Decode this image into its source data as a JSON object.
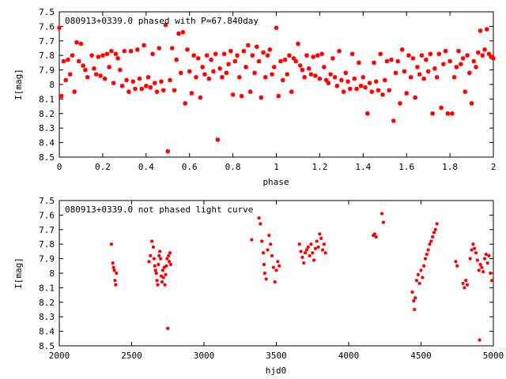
{
  "chart_data": [
    {
      "type": "scatter",
      "title": "080913+0339.0 phased with P=67.840day",
      "xlabel": "phase",
      "ylabel": "I[mag]",
      "xlim": [
        0,
        2
      ],
      "ylim": [
        8.5,
        7.5
      ],
      "y_inverted": true,
      "xticks": [
        "0",
        "0.2",
        "0.4",
        "0.6",
        "0.8",
        "1",
        "1.2",
        "1.4",
        "1.6",
        "1.8",
        "2"
      ],
      "yticks": [
        "7.5",
        "7.6",
        "7.7",
        "7.8",
        "7.9",
        "8",
        "8.1",
        "8.2",
        "8.3",
        "8.4",
        "8.5"
      ],
      "grid": false,
      "marker_color": "#ff0000",
      "points": [
        [
          0.0,
          7.61
        ],
        [
          0.01,
          8.08
        ],
        [
          0.02,
          7.84
        ],
        [
          0.03,
          7.97
        ],
        [
          0.04,
          7.83
        ],
        [
          0.05,
          7.93
        ],
        [
          0.06,
          7.8
        ],
        [
          0.07,
          8.05
        ],
        [
          0.08,
          7.71
        ],
        [
          0.09,
          7.84
        ],
        [
          0.1,
          7.72
        ],
        [
          0.11,
          7.87
        ],
        [
          0.12,
          7.9
        ],
        [
          0.13,
          7.95
        ],
        [
          0.15,
          7.8
        ],
        [
          0.16,
          7.89
        ],
        [
          0.17,
          7.93
        ],
        [
          0.18,
          7.81
        ],
        [
          0.19,
          7.94
        ],
        [
          0.2,
          7.8
        ],
        [
          0.21,
          7.96
        ],
        [
          0.22,
          7.79
        ],
        [
          0.23,
          7.88
        ],
        [
          0.24,
          7.77
        ],
        [
          0.25,
          7.99
        ],
        [
          0.26,
          7.79
        ],
        [
          0.27,
          7.82
        ],
        [
          0.28,
          7.9
        ],
        [
          0.29,
          8.01
        ],
        [
          0.3,
          7.77
        ],
        [
          0.31,
          7.97
        ],
        [
          0.32,
          8.05
        ],
        [
          0.33,
          7.77
        ],
        [
          0.34,
          7.98
        ],
        [
          0.35,
          8.03
        ],
        [
          0.36,
          7.76
        ],
        [
          0.37,
          7.96
        ],
        [
          0.38,
          8.03
        ],
        [
          0.39,
          7.73
        ],
        [
          0.4,
          8.01
        ],
        [
          0.41,
          7.95
        ],
        [
          0.42,
          8.02
        ],
        [
          0.43,
          7.79
        ],
        [
          0.44,
          7.99
        ],
        [
          0.45,
          8.05
        ],
        [
          0.46,
          7.75
        ],
        [
          0.47,
          7.98
        ],
        [
          0.48,
          8.04
        ],
        [
          0.49,
          7.59
        ],
        [
          0.5,
          8.46
        ],
        [
          0.51,
          7.97
        ],
        [
          0.52,
          7.75
        ],
        [
          0.53,
          8.04
        ],
        [
          0.54,
          7.83
        ],
        [
          0.55,
          7.65
        ],
        [
          0.56,
          7.92
        ],
        [
          0.57,
          7.64
        ],
        [
          0.58,
          8.13
        ],
        [
          0.59,
          7.76
        ],
        [
          0.6,
          7.91
        ],
        [
          0.61,
          8.06
        ],
        [
          0.62,
          7.8
        ],
        [
          0.63,
          7.95
        ],
        [
          0.64,
          7.82
        ],
        [
          0.65,
          8.09
        ],
        [
          0.66,
          7.88
        ],
        [
          0.67,
          7.93
        ],
        [
          0.68,
          7.8
        ],
        [
          0.69,
          7.96
        ],
        [
          0.7,
          7.83
        ],
        [
          0.71,
          7.91
        ],
        [
          0.72,
          7.79
        ],
        [
          0.73,
          8.38
        ],
        [
          0.74,
          7.89
        ],
        [
          0.75,
          7.95
        ],
        [
          0.76,
          7.79
        ],
        [
          0.77,
          7.92
        ],
        [
          0.78,
          7.86
        ],
        [
          0.79,
          7.77
        ],
        [
          0.8,
          8.07
        ],
        [
          0.81,
          7.84
        ],
        [
          0.82,
          7.8
        ],
        [
          0.83,
          7.95
        ],
        [
          0.84,
          8.08
        ],
        [
          0.85,
          7.77
        ],
        [
          0.86,
          7.88
        ],
        [
          0.87,
          7.73
        ],
        [
          0.88,
          8.05
        ],
        [
          0.89,
          7.8
        ],
        [
          0.9,
          7.92
        ],
        [
          0.91,
          7.74
        ],
        [
          0.92,
          7.84
        ],
        [
          0.93,
          8.09
        ],
        [
          0.94,
          7.78
        ],
        [
          0.95,
          7.95
        ],
        [
          0.96,
          7.8
        ],
        [
          0.97,
          7.76
        ],
        [
          0.98,
          7.93
        ],
        [
          0.99,
          7.88
        ],
        [
          1.0,
          7.61
        ],
        [
          1.01,
          8.08
        ],
        [
          1.02,
          7.84
        ],
        [
          1.03,
          7.97
        ],
        [
          1.04,
          7.83
        ],
        [
          1.05,
          7.93
        ],
        [
          1.06,
          7.8
        ],
        [
          1.07,
          8.05
        ],
        [
          1.08,
          7.82
        ],
        [
          1.09,
          7.84
        ],
        [
          1.1,
          7.72
        ],
        [
          1.11,
          7.87
        ],
        [
          1.12,
          7.9
        ],
        [
          1.13,
          7.95
        ],
        [
          1.14,
          7.8
        ],
        [
          1.15,
          7.89
        ],
        [
          1.16,
          7.93
        ],
        [
          1.17,
          7.81
        ],
        [
          1.18,
          7.94
        ],
        [
          1.19,
          7.8
        ],
        [
          1.2,
          7.96
        ],
        [
          1.21,
          7.79
        ],
        [
          1.22,
          7.88
        ],
        [
          1.23,
          7.97
        ],
        [
          1.24,
          7.99
        ],
        [
          1.25,
          7.93
        ],
        [
          1.26,
          7.82
        ],
        [
          1.27,
          7.95
        ],
        [
          1.28,
          8.01
        ],
        [
          1.29,
          7.77
        ],
        [
          1.3,
          7.97
        ],
        [
          1.31,
          8.05
        ],
        [
          1.32,
          7.92
        ],
        [
          1.33,
          7.98
        ],
        [
          1.34,
          8.03
        ],
        [
          1.35,
          7.79
        ],
        [
          1.36,
          7.96
        ],
        [
          1.37,
          8.03
        ],
        [
          1.38,
          7.85
        ],
        [
          1.39,
          8.01
        ],
        [
          1.4,
          7.95
        ],
        [
          1.41,
          8.02
        ],
        [
          1.42,
          8.2
        ],
        [
          1.43,
          7.99
        ],
        [
          1.44,
          8.05
        ],
        [
          1.45,
          7.85
        ],
        [
          1.46,
          7.98
        ],
        [
          1.47,
          8.04
        ],
        [
          1.48,
          7.79
        ],
        [
          1.49,
          8.07
        ],
        [
          1.5,
          7.97
        ],
        [
          1.51,
          7.84
        ],
        [
          1.52,
          8.04
        ],
        [
          1.53,
          7.83
        ],
        [
          1.54,
          8.25
        ],
        [
          1.55,
          7.92
        ],
        [
          1.56,
          7.84
        ],
        [
          1.57,
          8.13
        ],
        [
          1.58,
          7.76
        ],
        [
          1.59,
          7.91
        ],
        [
          1.6,
          8.06
        ],
        [
          1.61,
          7.8
        ],
        [
          1.62,
          7.95
        ],
        [
          1.63,
          7.82
        ],
        [
          1.64,
          8.09
        ],
        [
          1.65,
          7.88
        ],
        [
          1.66,
          7.93
        ],
        [
          1.67,
          7.8
        ],
        [
          1.68,
          7.96
        ],
        [
          1.69,
          7.83
        ],
        [
          1.7,
          7.91
        ],
        [
          1.71,
          7.79
        ],
        [
          1.72,
          8.2
        ],
        [
          1.73,
          7.89
        ],
        [
          1.74,
          7.95
        ],
        [
          1.75,
          7.79
        ],
        [
          1.76,
          8.16
        ],
        [
          1.77,
          7.86
        ],
        [
          1.78,
          7.77
        ],
        [
          1.79,
          8.2
        ],
        [
          1.8,
          7.84
        ],
        [
          1.81,
          8.2
        ],
        [
          1.82,
          7.95
        ],
        [
          1.83,
          7.88
        ],
        [
          1.84,
          7.77
        ],
        [
          1.85,
          7.86
        ],
        [
          1.86,
          7.82
        ],
        [
          1.87,
          8.05
        ],
        [
          1.88,
          7.8
        ],
        [
          1.89,
          7.92
        ],
        [
          1.9,
          8.13
        ],
        [
          1.91,
          7.84
        ],
        [
          1.92,
          7.88
        ],
        [
          1.93,
          7.78
        ],
        [
          1.94,
          7.63
        ],
        [
          1.95,
          7.8
        ],
        [
          1.96,
          7.76
        ],
        [
          1.97,
          7.62
        ],
        [
          1.98,
          7.79
        ],
        [
          1.99,
          7.81
        ],
        [
          2.0,
          7.82
        ]
      ]
    },
    {
      "type": "scatter",
      "title": "080913+0339.0 not phased light curve",
      "xlabel": "hjd0",
      "ylabel": "I[mag]",
      "xlim": [
        2000,
        5000
      ],
      "ylim": [
        8.5,
        7.5
      ],
      "y_inverted": true,
      "xticks": [
        "2000",
        "2500",
        "3000",
        "3500",
        "4000",
        "4500",
        "5000"
      ],
      "yticks": [
        "7.5",
        "7.6",
        "7.7",
        "7.8",
        "7.9",
        "8",
        "8.1",
        "8.2",
        "8.3",
        "8.4",
        "8.5"
      ],
      "grid": false,
      "marker_color": "#ff0000",
      "points": [
        [
          2360,
          7.8
        ],
        [
          2370,
          7.93
        ],
        [
          2375,
          7.96
        ],
        [
          2380,
          7.98
        ],
        [
          2385,
          8.05
        ],
        [
          2390,
          8.08
        ],
        [
          2395,
          8.0
        ],
        [
          2620,
          7.92
        ],
        [
          2630,
          7.88
        ],
        [
          2640,
          7.78
        ],
        [
          2650,
          7.82
        ],
        [
          2655,
          7.9
        ],
        [
          2660,
          7.95
        ],
        [
          2665,
          7.98
        ],
        [
          2670,
          8.0
        ],
        [
          2675,
          8.05
        ],
        [
          2680,
          8.08
        ],
        [
          2685,
          7.94
        ],
        [
          2690,
          7.88
        ],
        [
          2695,
          7.85
        ],
        [
          2700,
          7.9
        ],
        [
          2705,
          8.02
        ],
        [
          2710,
          8.06
        ],
        [
          2715,
          7.98
        ],
        [
          2720,
          8.03
        ],
        [
          2725,
          7.96
        ],
        [
          2730,
          8.08
        ],
        [
          2735,
          8.01
        ],
        [
          2740,
          7.95
        ],
        [
          2745,
          7.9
        ],
        [
          2750,
          8.38
        ],
        [
          2755,
          7.88
        ],
        [
          2760,
          7.92
        ],
        [
          2765,
          7.86
        ],
        [
          2770,
          7.94
        ],
        [
          3330,
          7.77
        ],
        [
          3380,
          7.62
        ],
        [
          3390,
          7.66
        ],
        [
          3400,
          7.78
        ],
        [
          3410,
          7.86
        ],
        [
          3415,
          7.94
        ],
        [
          3420,
          8.0
        ],
        [
          3430,
          8.04
        ],
        [
          3440,
          7.84
        ],
        [
          3450,
          7.74
        ],
        [
          3460,
          7.8
        ],
        [
          3470,
          7.88
        ],
        [
          3480,
          7.96
        ],
        [
          3490,
          8.06
        ],
        [
          3500,
          7.98
        ],
        [
          3510,
          7.92
        ],
        [
          3520,
          7.95
        ],
        [
          3660,
          7.8
        ],
        [
          3670,
          7.85
        ],
        [
          3680,
          7.89
        ],
        [
          3690,
          7.93
        ],
        [
          3700,
          7.86
        ],
        [
          3710,
          7.84
        ],
        [
          3720,
          7.82
        ],
        [
          3730,
          7.88
        ],
        [
          3740,
          7.8
        ],
        [
          3750,
          7.86
        ],
        [
          3760,
          7.91
        ],
        [
          3770,
          7.83
        ],
        [
          3780,
          7.78
        ],
        [
          3790,
          7.82
        ],
        [
          3800,
          7.73
        ],
        [
          3810,
          7.76
        ],
        [
          3820,
          7.84
        ],
        [
          3830,
          7.8
        ],
        [
          3840,
          7.86
        ],
        [
          4170,
          7.74
        ],
        [
          4180,
          7.73
        ],
        [
          4190,
          7.75
        ],
        [
          4230,
          7.59
        ],
        [
          4240,
          7.65
        ],
        [
          4440,
          8.13
        ],
        [
          4450,
          8.19
        ],
        [
          4455,
          8.25
        ],
        [
          4460,
          8.17
        ],
        [
          4470,
          8.05
        ],
        [
          4480,
          8.01
        ],
        [
          4490,
          8.07
        ],
        [
          4500,
          7.98
        ],
        [
          4510,
          8.03
        ],
        [
          4520,
          7.95
        ],
        [
          4530,
          7.9
        ],
        [
          4540,
          7.87
        ],
        [
          4550,
          7.84
        ],
        [
          4560,
          7.8
        ],
        [
          4570,
          7.78
        ],
        [
          4580,
          7.75
        ],
        [
          4590,
          7.72
        ],
        [
          4600,
          7.7
        ],
        [
          4610,
          7.66
        ],
        [
          4740,
          7.92
        ],
        [
          4750,
          7.95
        ],
        [
          4790,
          8.07
        ],
        [
          4800,
          8.1
        ],
        [
          4810,
          8.05
        ],
        [
          4820,
          8.08
        ],
        [
          4840,
          7.9
        ],
        [
          4850,
          7.84
        ],
        [
          4860,
          7.8
        ],
        [
          4870,
          7.83
        ],
        [
          4880,
          7.86
        ],
        [
          4890,
          7.91
        ],
        [
          4900,
          7.98
        ],
        [
          4905,
          8.46
        ],
        [
          4910,
          7.94
        ],
        [
          4920,
          7.96
        ],
        [
          4930,
          7.99
        ],
        [
          4940,
          7.9
        ],
        [
          4950,
          7.87
        ],
        [
          4960,
          7.93
        ],
        [
          4970,
          7.88
        ],
        [
          4980,
          8.0
        ],
        [
          4990,
          8.05
        ]
      ]
    }
  ]
}
